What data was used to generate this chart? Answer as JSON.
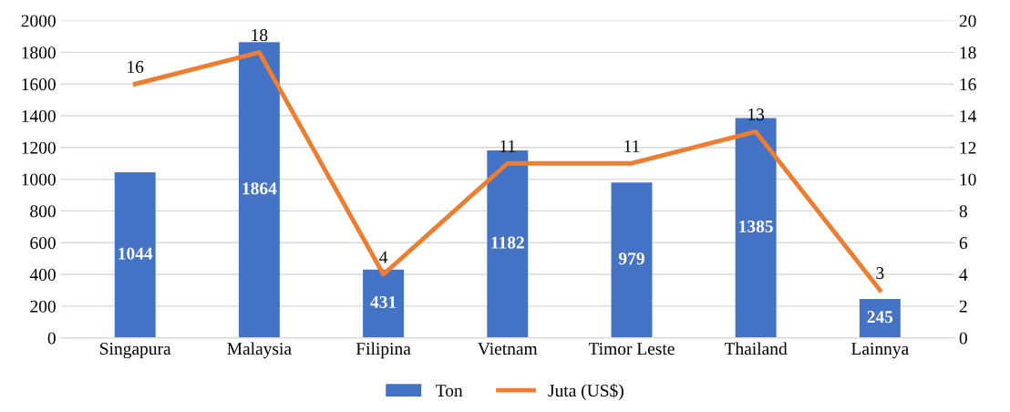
{
  "chart_data": {
    "type": "bar",
    "categories": [
      "Singapura",
      "Malaysia",
      "Filipina",
      "Vietnam",
      "Timor Leste",
      "Thailand",
      "Lainnya"
    ],
    "series": [
      {
        "name": "Ton",
        "color": "#4472c4",
        "values": [
          1044,
          1864,
          431,
          1182,
          979,
          1385,
          245
        ]
      },
      {
        "name": "Juta (US$)",
        "type": "line",
        "axis": "y2",
        "color": "#ed7d31",
        "values": [
          16,
          18,
          4,
          11,
          11,
          13,
          3
        ]
      }
    ],
    "ylim": [
      0,
      2000
    ],
    "yticks": [
      0,
      200,
      400,
      600,
      800,
      1000,
      1200,
      1400,
      1600,
      1800,
      2000
    ],
    "y2lim": [
      0,
      20
    ],
    "y2ticks": [
      0,
      2,
      4,
      6,
      8,
      10,
      12,
      14,
      16,
      18,
      20
    ],
    "grid": "y",
    "legend": "bottom",
    "data_labels": true,
    "marker": "none",
    "line_style": "solid"
  }
}
